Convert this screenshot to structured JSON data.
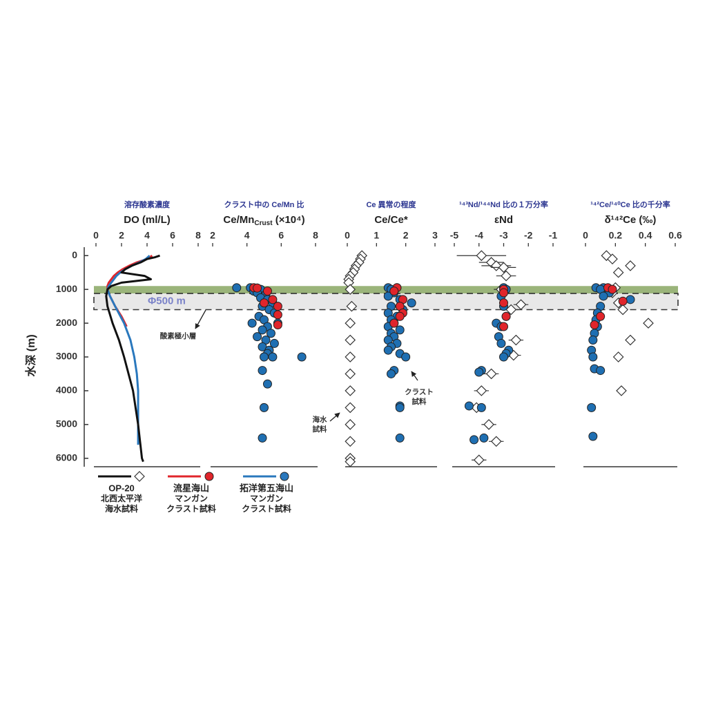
{
  "y_label": "水深 (m)",
  "chart_data": [
    {
      "type": "line",
      "subtitle": "溶存酸素濃度",
      "x_label": "DO (ml/L)",
      "xlim": [
        0,
        8
      ],
      "xticks": [
        0,
        2,
        4,
        6,
        8
      ],
      "ylim": [
        -250,
        6250
      ],
      "yticks": [
        0,
        1000,
        2000,
        3000,
        4000,
        5000,
        6000
      ],
      "bands": [
        {
          "from": 900,
          "to": 1120,
          "color": "#8fac6c"
        },
        {
          "from": 1120,
          "to": 1600,
          "color": "#e6e6e6"
        }
      ],
      "box": [
        1120,
        1600
      ],
      "box_label": "Φ500 m",
      "omz_label": "酸素極小層",
      "series": [
        {
          "color": "#e0252b",
          "y": [
            0,
            100,
            200,
            300,
            400,
            500,
            600,
            700,
            800,
            900,
            1000,
            1200,
            1500,
            1800,
            2100
          ],
          "x": [
            4.4,
            4.0,
            3.2,
            2.6,
            2.1,
            1.7,
            1.4,
            1.2,
            1.0,
            0.9,
            0.9,
            1.1,
            1.5,
            2.0,
            2.4
          ]
        },
        {
          "color": "#2a78bd",
          "y": [
            0,
            100,
            200,
            300,
            400,
            500,
            600,
            700,
            800,
            900,
            1000,
            1200,
            1500,
            2000,
            2500,
            3000,
            3500,
            4000,
            4500,
            5000,
            5600
          ],
          "x": [
            4.2,
            3.9,
            3.4,
            2.8,
            2.3,
            1.9,
            1.6,
            1.4,
            1.2,
            1.0,
            0.9,
            1.1,
            1.5,
            2.2,
            2.7,
            3.0,
            3.2,
            3.3,
            3.3,
            3.3,
            3.3
          ]
        },
        {
          "color": "#111111",
          "y": [
            0,
            50,
            100,
            200,
            300,
            400,
            500,
            600,
            700,
            800,
            900,
            1000,
            1200,
            1500,
            2000,
            2500,
            3000,
            4000,
            5000,
            6000,
            6100
          ],
          "x": [
            5.0,
            4.6,
            4.0,
            3.5,
            2.8,
            2.3,
            2.0,
            3.8,
            4.3,
            2.0,
            1.2,
            0.9,
            0.8,
            0.9,
            1.3,
            1.8,
            2.2,
            2.9,
            3.3,
            3.6,
            3.7
          ]
        }
      ],
      "legend": [
        {
          "color": "#111111",
          "marker": "diamond",
          "lines": [
            "OP-20",
            "北西太平洋",
            "海水試料"
          ]
        },
        {
          "color": "#e0252b",
          "marker": "circle",
          "lines": [
            "流星海山",
            "マンガン",
            "クラスト試料"
          ]
        },
        {
          "color": "#2a78bd",
          "marker": "circle",
          "lines": [
            "拓洋第五海山",
            "マンガン",
            "クラスト試料"
          ]
        }
      ]
    },
    {
      "type": "scatter",
      "subtitle": "クラスト中の Ce/Mn 比",
      "x_label": {
        "text": "Ce/Mn",
        "sub": "Crust",
        "after": " (×10⁴)"
      },
      "xlim": [
        2,
        8
      ],
      "xticks": [
        2,
        4,
        6,
        8
      ],
      "ylim": [
        -250,
        6250
      ],
      "series": [
        {
          "marker": "circle",
          "color": "#1f6fb2",
          "y": [
            950,
            950,
            960,
            1000,
            1050,
            1100,
            1150,
            1250,
            1300,
            1400,
            1500,
            1600,
            1700,
            1800,
            1900,
            2000,
            2000,
            2100,
            2200,
            2300,
            2400,
            2500,
            2600,
            2700,
            2800,
            2900,
            3000,
            3000,
            3000,
            3400,
            3800,
            4500,
            5400
          ],
          "x": [
            3.4,
            4.2,
            4.6,
            4.8,
            4.4,
            4.6,
            5.1,
            4.8,
            5.2,
            5.5,
            4.9,
            5.3,
            5.6,
            4.7,
            5.0,
            4.3,
            5.8,
            5.2,
            4.9,
            5.4,
            4.6,
            5.1,
            5.6,
            4.9,
            5.3,
            5.2,
            5.0,
            5.5,
            7.2,
            4.9,
            5.2,
            5.0,
            4.9
          ]
        },
        {
          "marker": "circle",
          "color": "#e0252b",
          "y": [
            950,
            960,
            1050,
            1300,
            1400,
            1500,
            1750,
            2050
          ],
          "x": [
            4.4,
            4.6,
            5.2,
            5.5,
            5.0,
            5.8,
            5.8,
            5.8
          ]
        }
      ]
    },
    {
      "type": "scatter",
      "subtitle": "Ce 異常の程度",
      "x_label": "Ce/Ce*",
      "xlim": [
        0,
        3
      ],
      "xticks": [
        0,
        1,
        2,
        3
      ],
      "ylim": [
        -250,
        6250
      ],
      "series": [
        {
          "marker": "diamond",
          "color": "#ffffff",
          "y": [
            0,
            100,
            200,
            300,
            400,
            500,
            600,
            700,
            800,
            1000,
            1500,
            2000,
            2500,
            3000,
            3500,
            4000,
            4500,
            5000,
            5500,
            6000,
            6100
          ],
          "x": [
            0.5,
            0.45,
            0.4,
            0.3,
            0.25,
            0.2,
            0.1,
            0.05,
            0.05,
            0.1,
            0.15,
            0.1,
            0.1,
            0.1,
            0.1,
            0.1,
            0.1,
            0.1,
            0.1,
            0.1,
            0.1
          ]
        },
        {
          "marker": "circle",
          "color": "#1f6fb2",
          "y": [
            950,
            950,
            1000,
            1100,
            1200,
            1300,
            1400,
            1500,
            1600,
            1700,
            1800,
            1900,
            2000,
            2100,
            2200,
            2300,
            2400,
            2500,
            2600,
            2700,
            2800,
            2900,
            3000,
            3400,
            3500,
            4450,
            4500,
            5400
          ],
          "x": [
            1.4,
            1.7,
            1.5,
            1.6,
            1.4,
            1.8,
            2.2,
            1.5,
            1.9,
            1.4,
            1.7,
            1.5,
            1.6,
            1.4,
            1.8,
            1.5,
            1.6,
            1.4,
            1.7,
            1.5,
            1.4,
            1.8,
            2.0,
            1.6,
            1.5,
            1.8,
            1.8,
            1.8
          ]
        },
        {
          "marker": "circle",
          "color": "#e0252b",
          "y": [
            950,
            1050,
            1300,
            1500,
            1700,
            1800,
            2000
          ],
          "x": [
            1.7,
            1.6,
            1.9,
            1.8,
            1.9,
            1.8,
            1.6
          ]
        }
      ],
      "annotations": [
        {
          "lines": [
            "海水",
            "試料"
          ]
        },
        {
          "lines": [
            "クラスト",
            "試料"
          ]
        }
      ]
    },
    {
      "type": "scatter",
      "subtitle": "¹⁴³Nd/¹⁴⁴Nd 比の１万分率",
      "x_label": "εNd",
      "xlim": [
        -5,
        -1
      ],
      "xticks": [
        -5,
        -4,
        -3,
        -2,
        -1
      ],
      "ylim": [
        -250,
        6250
      ],
      "series": [
        {
          "marker": "diamond",
          "color": "#ffffff",
          "y": [
            0,
            200,
            300,
            350,
            600,
            1000,
            1450,
            1600,
            2500,
            2950,
            3500,
            4000,
            4500,
            5000,
            5500,
            6050
          ],
          "x": [
            -3.9,
            -3.5,
            -3.3,
            -3.0,
            -2.9,
            -3.1,
            -2.3,
            -2.7,
            -2.5,
            -2.6,
            -3.5,
            -3.9,
            -4.1,
            -3.6,
            -3.3,
            -4.0
          ],
          "errors": [
            1.0,
            0.5,
            0.6,
            0.5,
            0.4,
            0.3,
            0.3,
            0.3,
            0.3,
            0.3,
            0.3,
            0.3,
            0.3,
            0.3,
            0.3,
            0.3
          ]
        },
        {
          "marker": "circle",
          "color": "#1f6fb2",
          "y": [
            950,
            1000,
            1200,
            1500,
            1800,
            2000,
            2100,
            2400,
            2600,
            2800,
            2900,
            3000,
            3400,
            3450,
            4450,
            4500,
            5400,
            5450
          ],
          "x": [
            -3.0,
            -2.9,
            -3.1,
            -3.0,
            -2.9,
            -3.3,
            -3.1,
            -3.2,
            -3.1,
            -2.8,
            -2.9,
            -3.0,
            -3.9,
            -4.0,
            -4.4,
            -3.9,
            -3.8,
            -4.2
          ]
        },
        {
          "marker": "circle",
          "color": "#e0252b",
          "y": [
            1000,
            1100,
            1400,
            1800,
            2100
          ],
          "x": [
            -3.0,
            -3.0,
            -3.0,
            -2.9,
            -3.0
          ]
        }
      ]
    },
    {
      "type": "scatter",
      "subtitle": "¹⁴²Ce/¹⁴⁰Ce 比の千分率",
      "x_label": "δ¹⁴²Ce (‰)",
      "xlim": [
        0,
        0.6
      ],
      "xticks": [
        0,
        0.2,
        0.4,
        0.6
      ],
      "ylim": [
        -250,
        6250
      ],
      "series": [
        {
          "marker": "diamond",
          "color": "#ffffff",
          "y": [
            0,
            100,
            300,
            500,
            950,
            1100,
            1400,
            1600,
            2000,
            2500,
            3000,
            4000
          ],
          "x": [
            0.14,
            0.18,
            0.3,
            0.22,
            0.2,
            0.18,
            0.22,
            0.25,
            0.42,
            0.3,
            0.22,
            0.24
          ]
        },
        {
          "marker": "circle",
          "color": "#1f6fb2",
          "y": [
            950,
            950,
            1000,
            1100,
            1200,
            1300,
            1500,
            1700,
            1900,
            2100,
            2300,
            2500,
            2800,
            3000,
            3350,
            3400,
            4500,
            5350
          ],
          "x": [
            0.07,
            0.12,
            0.1,
            0.16,
            0.12,
            0.3,
            0.1,
            0.08,
            0.07,
            0.08,
            0.06,
            0.05,
            0.04,
            0.05,
            0.06,
            0.1,
            0.04,
            0.05
          ]
        },
        {
          "marker": "circle",
          "color": "#e0252b",
          "y": [
            950,
            1000,
            1350,
            1800,
            2050
          ],
          "x": [
            0.15,
            0.18,
            0.25,
            0.1,
            0.06
          ]
        }
      ]
    }
  ]
}
